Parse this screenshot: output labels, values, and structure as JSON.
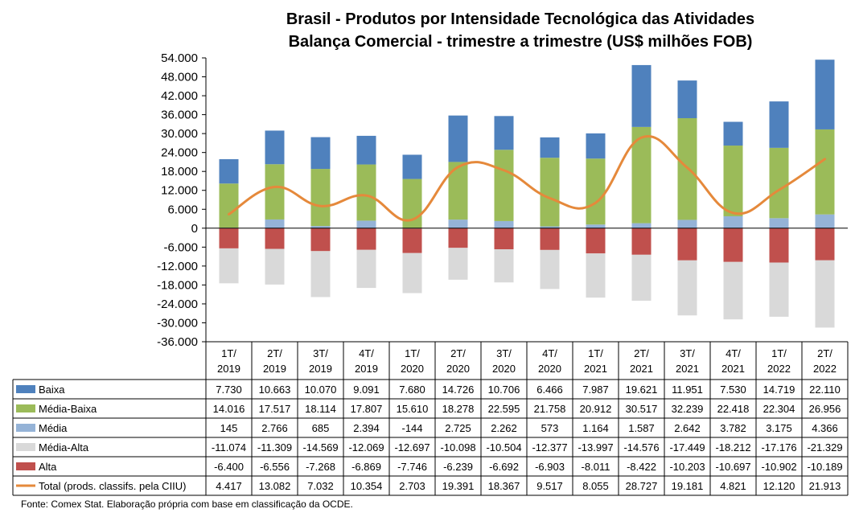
{
  "chart_data": {
    "type": "bar",
    "title_lines": [
      "Brasil - Produtos por Intensidade Tecnológica das Atividades",
      "Balança Comercial - trimestre a trimestre (US$ milhões FOB)"
    ],
    "categories": [
      [
        "1T/",
        "2019"
      ],
      [
        "2T/",
        "2019"
      ],
      [
        "3T/",
        "2019"
      ],
      [
        "4T/",
        "2019"
      ],
      [
        "1T/",
        "2020"
      ],
      [
        "2T/",
        "2020"
      ],
      [
        "3T/",
        "2020"
      ],
      [
        "4T/",
        "2020"
      ],
      [
        "1T/",
        "2021"
      ],
      [
        "2T/",
        "2021"
      ],
      [
        "3T/",
        "2021"
      ],
      [
        "4T/",
        "2021"
      ],
      [
        "1T/",
        "2022"
      ],
      [
        "2T/",
        "2022"
      ]
    ],
    "ylim": [
      -36000,
      54000
    ],
    "y_ticks": [
      -36000,
      -30000,
      -24000,
      -18000,
      -12000,
      -6000,
      0,
      6000,
      12000,
      18000,
      24000,
      30000,
      36000,
      42000,
      48000,
      54000
    ],
    "y_tick_labels": [
      "-36.000",
      "-30.000",
      "-24.000",
      "-18.000",
      "-12.000",
      "-6.000",
      "0",
      "6.000",
      "12.000",
      "18.000",
      "24.000",
      "30.000",
      "36.000",
      "42.000",
      "48.000",
      "54.000"
    ],
    "series": [
      {
        "name": "Baixa",
        "type": "bar",
        "color": "#4F81BD",
        "values": [
          7730,
          10663,
          10070,
          9091,
          7680,
          14726,
          10706,
          6466,
          7987,
          19621,
          11951,
          7530,
          14719,
          22110
        ],
        "labels": [
          "7.730",
          "10.663",
          "10.070",
          "9.091",
          "7.680",
          "14.726",
          "10.706",
          "6.466",
          "7.987",
          "19.621",
          "11.951",
          "7.530",
          "14.719",
          "22.110"
        ]
      },
      {
        "name": "Média-Baixa",
        "type": "bar",
        "color": "#9BBB59",
        "values": [
          14016,
          17517,
          18114,
          17807,
          15610,
          18278,
          22595,
          21758,
          20912,
          30517,
          32239,
          22418,
          22304,
          26956
        ],
        "labels": [
          "14.016",
          "17.517",
          "18.114",
          "17.807",
          "15.610",
          "18.278",
          "22.595",
          "21.758",
          "20.912",
          "30.517",
          "32.239",
          "22.418",
          "22.304",
          "26.956"
        ]
      },
      {
        "name": "Média",
        "type": "bar",
        "color": "#95B3D7",
        "values": [
          145,
          2766,
          685,
          2394,
          -144,
          2725,
          2262,
          573,
          1164,
          1587,
          2642,
          3782,
          3175,
          4366
        ],
        "labels": [
          "145",
          "2.766",
          "685",
          "2.394",
          "-144",
          "2.725",
          "2.262",
          "573",
          "1.164",
          "1.587",
          "2.642",
          "3.782",
          "3.175",
          "4.366"
        ]
      },
      {
        "name": "Média-Alta",
        "type": "bar",
        "color": "#D9D9D9",
        "values": [
          -11074,
          -11309,
          -14569,
          -12069,
          -12697,
          -10098,
          -10504,
          -12377,
          -13997,
          -14576,
          -17449,
          -18212,
          -17176,
          -21329
        ],
        "labels": [
          "-11.074",
          "-11.309",
          "-14.569",
          "-12.069",
          "-12.697",
          "-10.098",
          "-10.504",
          "-12.377",
          "-13.997",
          "-14.576",
          "-17.449",
          "-18.212",
          "-17.176",
          "-21.329"
        ]
      },
      {
        "name": "Alta",
        "type": "bar",
        "color": "#C0504D",
        "values": [
          -6400,
          -6556,
          -7268,
          -6869,
          -7746,
          -6239,
          -6692,
          -6903,
          -8011,
          -8422,
          -10203,
          -10697,
          -10902,
          -10189
        ],
        "labels": [
          "-6.400",
          "-6.556",
          "-7.268",
          "-6.869",
          "-7.746",
          "-6.239",
          "-6.692",
          "-6.903",
          "-8.011",
          "-8.422",
          "-10.203",
          "-10.697",
          "-10.902",
          "-10.189"
        ]
      },
      {
        "name": "Total (prods. classifs. pela CIIU)",
        "type": "line",
        "color": "#E5893B",
        "values": [
          4417,
          13082,
          7032,
          10354,
          2703,
          19391,
          18367,
          9517,
          8055,
          28727,
          19181,
          4821,
          12120,
          21913
        ],
        "labels": [
          "4.417",
          "13.082",
          "7.032",
          "10.354",
          "2.703",
          "19.391",
          "18.367",
          "9.517",
          "8.055",
          "28.727",
          "19.181",
          "4.821",
          "12.120",
          "21.913"
        ]
      }
    ],
    "positive_stack_order": [
      "Média",
      "Média-Baixa",
      "Baixa"
    ],
    "negative_stack_order": [
      "Alta",
      "Média-Alta"
    ],
    "grid": false,
    "legend": "data-table"
  },
  "source_note": "Fonte:  Comex Stat. Elaboração própria com base em classificação da OCDE."
}
